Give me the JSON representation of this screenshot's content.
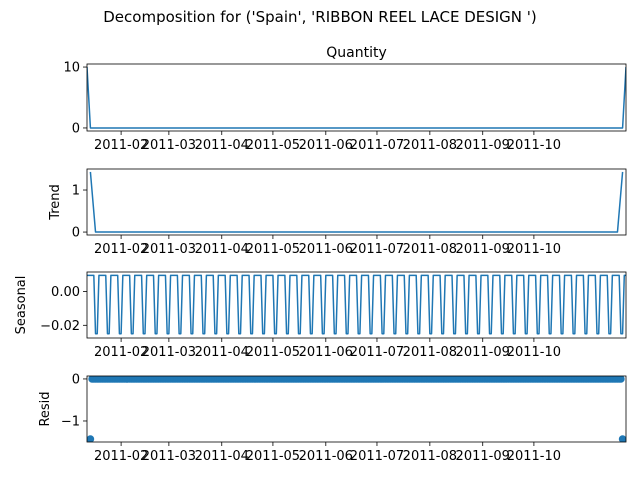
{
  "figure": {
    "suptitle": "Decomposition for ('Spain', 'RIBBON REEL LACE DESIGN ')"
  },
  "chart_data": [
    {
      "type": "line",
      "panel": "observed",
      "title": "Quantity",
      "ylabel": "",
      "x_range": [
        "2011-01-12",
        "2011-11-24"
      ],
      "ylim": [
        -0.5,
        10.5
      ],
      "yticks": [
        0,
        10
      ],
      "xtick_labels": [
        "2011-02",
        "2011-03",
        "2011-04",
        "2011-05",
        "2011-06",
        "2011-07",
        "2011-08",
        "2011-09",
        "2011-10"
      ],
      "points": [
        [
          "2011-01-12",
          10
        ],
        [
          "2011-01-14",
          0
        ],
        [
          "2011-11-22",
          0
        ],
        [
          "2011-11-24",
          10
        ]
      ],
      "color": "#1f77b4"
    },
    {
      "type": "line",
      "panel": "trend",
      "title": "",
      "ylabel": "Trend",
      "x_range": [
        "2011-01-12",
        "2011-11-24"
      ],
      "ylim": [
        -0.07,
        1.5
      ],
      "yticks": [
        0,
        1
      ],
      "xtick_labels": [
        "2011-02",
        "2011-03",
        "2011-04",
        "2011-05",
        "2011-06",
        "2011-07",
        "2011-08",
        "2011-09",
        "2011-10"
      ],
      "points": [
        [
          "2011-01-14",
          1.43
        ],
        [
          "2011-01-17",
          0
        ],
        [
          "2011-11-19",
          0
        ],
        [
          "2011-11-22",
          1.43
        ]
      ],
      "color": "#1f77b4"
    },
    {
      "type": "line",
      "panel": "seasonal",
      "title": "",
      "ylabel": "Seasonal",
      "x_range": [
        "2011-01-12",
        "2011-11-24"
      ],
      "ylim": [
        -0.0275,
        0.0115
      ],
      "yticks": [
        0.0,
        -0.02
      ],
      "ytick_labels": [
        "0.00",
        "−0.02"
      ],
      "xtick_labels": [
        "2011-02",
        "2011-03",
        "2011-04",
        "2011-05",
        "2011-06",
        "2011-07",
        "2011-08",
        "2011-09",
        "2011-10"
      ],
      "periodic": {
        "start": "2011-01-12",
        "end": "2011-11-24",
        "period_days": 7,
        "high": 0.0095,
        "low": -0.025,
        "pattern": [
          1,
          1,
          1,
          1,
          1,
          0,
          0
        ]
      },
      "color": "#1f77b4"
    },
    {
      "type": "scatter",
      "panel": "resid",
      "title": "",
      "ylabel": "Resid",
      "x_range": [
        "2011-01-12",
        "2011-11-24"
      ],
      "ylim": [
        -1.5,
        0.07
      ],
      "yticks": [
        0,
        -1
      ],
      "ytick_labels": [
        "0",
        "−1"
      ],
      "xtick_labels": [
        "2011-02",
        "2011-03",
        "2011-04",
        "2011-05",
        "2011-06",
        "2011-07",
        "2011-08",
        "2011-09",
        "2011-10"
      ],
      "baseline": {
        "start": "2011-01-15",
        "end": "2011-11-21",
        "step_days": 1,
        "value": 0.0
      },
      "outliers": [
        [
          "2011-01-14",
          -1.43
        ],
        [
          "2011-11-22",
          -1.43
        ]
      ],
      "marker": "circle",
      "color": "#1f77b4"
    }
  ]
}
